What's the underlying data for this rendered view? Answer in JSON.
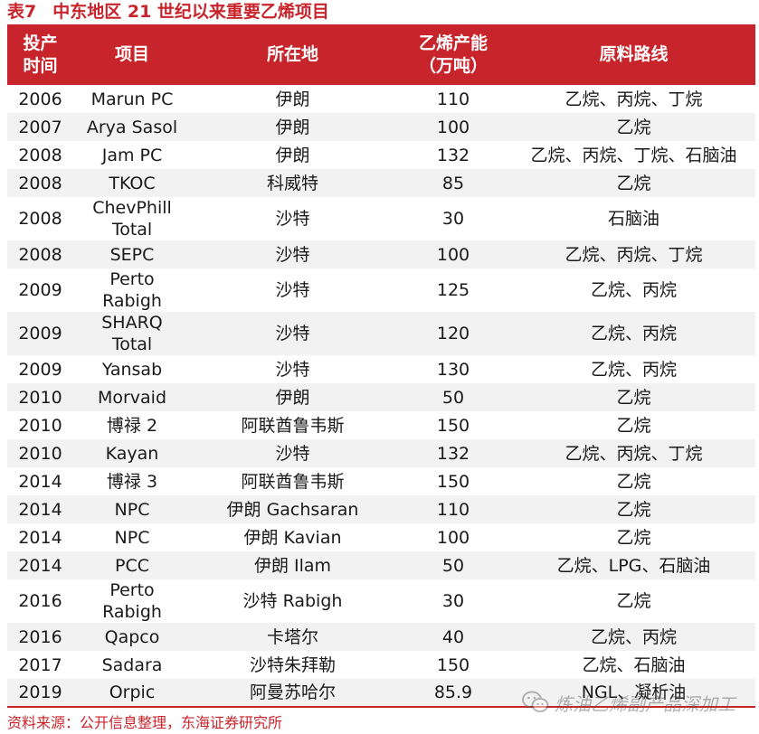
{
  "title": {
    "number": "表7",
    "text": "中东地区 21 世纪以来重要乙烯项目"
  },
  "table": {
    "headers": [
      "投产\n时间",
      "项目",
      "所在地",
      "乙烯产能\n（万吨）",
      "原料路线"
    ],
    "rows": [
      [
        "2006",
        "Marun PC",
        "伊朗",
        "110",
        "乙烷、丙烷、丁烷"
      ],
      [
        "2007",
        "Arya Sasol",
        "伊朗",
        "100",
        "乙烷"
      ],
      [
        "2008",
        "Jam PC",
        "伊朗",
        "132",
        "乙烷、丙烷、丁烷、石脑油"
      ],
      [
        "2008",
        "TKOC",
        "科威特",
        "85",
        "乙烷"
      ],
      [
        "2008",
        "ChevPhill Total",
        "沙特",
        "30",
        "石脑油"
      ],
      [
        "2008",
        "SEPC",
        "沙特",
        "100",
        "乙烷、丙烷、丁烷"
      ],
      [
        "2009",
        "Perto Rabigh",
        "沙特",
        "125",
        "乙烷、丙烷"
      ],
      [
        "2009",
        "SHARQ Total",
        "沙特",
        "120",
        "乙烷、丙烷"
      ],
      [
        "2009",
        "Yansab",
        "沙特",
        "130",
        "乙烷、丙烷"
      ],
      [
        "2010",
        "Morvaid",
        "伊朗",
        "50",
        "乙烷"
      ],
      [
        "2010",
        "博禄 2",
        "阿联酋鲁韦斯",
        "150",
        "乙烷"
      ],
      [
        "2010",
        "Kayan",
        "沙特",
        "132",
        "乙烷、丙烷、丁烷"
      ],
      [
        "2014",
        "博禄 3",
        "阿联酋鲁韦斯",
        "150",
        "乙烷"
      ],
      [
        "2014",
        "NPC",
        "伊朗 Gachsaran",
        "110",
        "乙烷"
      ],
      [
        "2014",
        "NPC",
        "伊朗 Kavian",
        "100",
        "乙烷"
      ],
      [
        "2014",
        "PCC",
        "伊朗 Ilam",
        "50",
        "乙烷、LPG、石脑油"
      ],
      [
        "2016",
        "Perto Rabigh",
        "沙特 Rabigh",
        "30",
        "乙烷"
      ],
      [
        "2016",
        "Qapco",
        "卡塔尔",
        "40",
        "乙烷、丙烷"
      ],
      [
        "2017",
        "Sadara",
        "沙特朱拜勒",
        "150",
        "乙烷、石脑油"
      ],
      [
        "2019",
        "Orpic",
        "阿曼苏哈尔",
        "85.9",
        "NGL、凝析油"
      ]
    ]
  },
  "source": "资料来源：公开信息整理，东海证券研究所",
  "watermark": {
    "text": "炼油乙烯副产品深加工",
    "icon": "wechat-icon"
  },
  "colors": {
    "accent": "#c8242b",
    "header_text": "#ffffff",
    "row_alt": "#f2f2f2"
  }
}
